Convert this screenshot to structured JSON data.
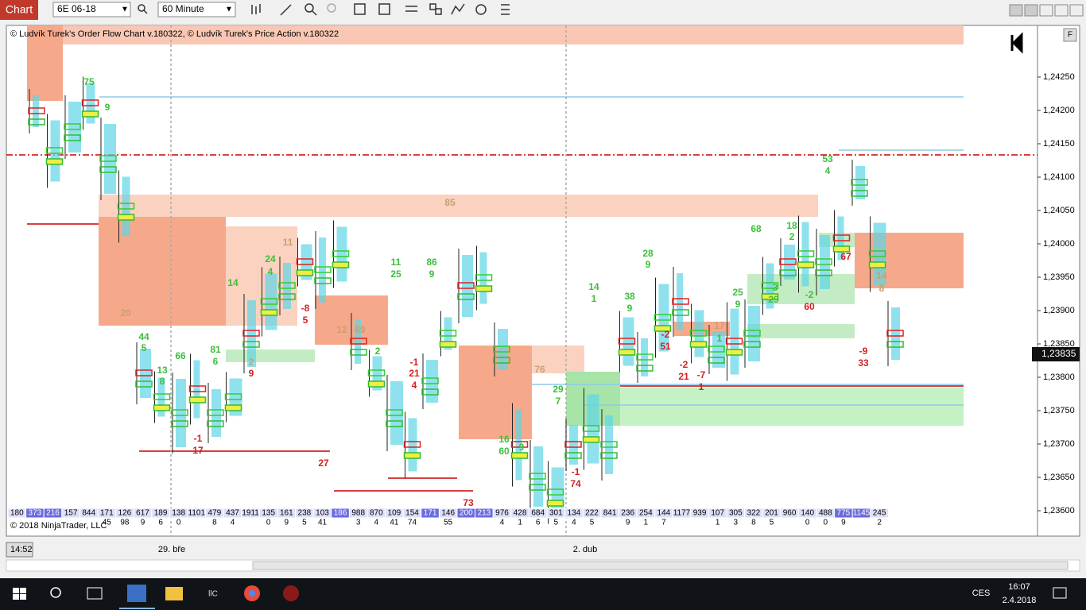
{
  "toolbar": {
    "tab": "Chart",
    "instrument": "6E 06-18",
    "interval": "60 Minute"
  },
  "chart": {
    "header": "© Ludvík Turek's Order Flow Chart v.180322, © Ludvík Turek's Price Action v.180322",
    "copyright": "© 2018 NinjaTrader, LLC",
    "price_labels": [
      "1,24250",
      "1,24200",
      "1,24150",
      "1,24100",
      "1,24050",
      "1,24000",
      "1,23950",
      "1,23900",
      "1,23850",
      "1,23800",
      "1,23750",
      "1,23700",
      "1,23650",
      "1,23600"
    ],
    "current_price": "1,23835",
    "clock": "14:52",
    "time_labels": [
      "29. bře",
      "2. dub"
    ],
    "volume_row": [
      "180",
      "373",
      "216",
      "157",
      "844",
      "171",
      "126",
      "617",
      "189",
      "138",
      "1101",
      "479",
      "437",
      "1911",
      "135",
      "161",
      "238",
      "103",
      "186",
      "988",
      "870",
      "109",
      "154",
      "171",
      "146",
      "200",
      "213",
      "976",
      "428",
      "684",
      "301",
      "134",
      "222",
      "841",
      "236",
      "254",
      "144",
      "1177",
      "939",
      "107",
      "305",
      "322",
      "201",
      "960",
      "140",
      "488",
      "775",
      "1145",
      "245"
    ],
    "delta_row": [
      null,
      null,
      null,
      null,
      null,
      "45",
      "98",
      "9",
      "6",
      "0",
      null,
      "8",
      "4",
      null,
      "0",
      "9",
      "5",
      "41",
      null,
      "3",
      "4",
      "41",
      "74",
      null,
      "55",
      null,
      null,
      "4",
      "1",
      "6",
      "5",
      "4",
      "5",
      null,
      "9",
      "1",
      "7",
      null,
      null,
      "1",
      "3",
      "8",
      "5",
      null,
      "0",
      "0",
      "9",
      null,
      "2"
    ],
    "annotations": [
      "75",
      "9",
      "20",
      "44",
      "5",
      "13",
      "8",
      "66",
      "81",
      "6",
      "14",
      "24",
      "4",
      "11",
      "-8",
      "5",
      "2",
      "9",
      "-1",
      "17",
      "27",
      "12",
      "69",
      "2",
      "11",
      "25",
      "86",
      "9",
      "-1",
      "21",
      "4",
      "85",
      "73",
      "76",
      "29",
      "7",
      "16",
      "60",
      "9",
      "-1",
      "74",
      "14",
      "1",
      "38",
      "9",
      "28",
      "9",
      "-2",
      "51",
      "-2",
      "21",
      "-7",
      "1",
      "17",
      "1",
      "25",
      "9",
      "68",
      "-3",
      "29",
      "18",
      "2",
      "-2",
      "60",
      "53",
      "4",
      "67",
      "14",
      "8",
      "-9",
      "33"
    ]
  },
  "taskbar": {
    "language": "CES",
    "time": "16:07",
    "date": "2.4.2018"
  }
}
